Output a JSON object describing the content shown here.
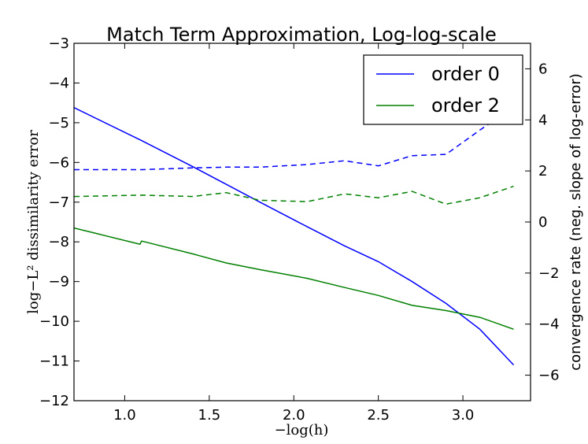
{
  "chart_data": {
    "type": "line",
    "title": "Match Term Approximation, Log-log-scale",
    "xlabel": "−log(h)",
    "ylabel_left": "log−L² dissimilarity error",
    "ylabel_right": "convergence rate (neg. slope of log-error)",
    "xlim": [
      0.7,
      3.4
    ],
    "ylim_left": [
      -12,
      -3
    ],
    "ylim_right": [
      -7,
      7
    ],
    "x_ticks": [
      "1.0",
      "1.5",
      "2.0",
      "2.5",
      "3.0"
    ],
    "x_tick_values": [
      1.0,
      1.5,
      2.0,
      2.5,
      3.0
    ],
    "y_ticks_left": [
      "−12",
      "−11",
      "−10",
      "−9",
      "−8",
      "−7",
      "−6",
      "−5",
      "−4",
      "−3"
    ],
    "y_tick_values_left": [
      -12,
      -11,
      -10,
      -9,
      -8,
      -7,
      -6,
      -5,
      -4,
      -3
    ],
    "y_ticks_right": [
      "−6",
      "−4",
      "−2",
      "0",
      "2",
      "4",
      "6"
    ],
    "y_tick_values_right": [
      -6,
      -4,
      -2,
      0,
      2,
      4,
      6
    ],
    "legend_position": "top-right",
    "series": [
      {
        "name": "order 0",
        "axis": "left",
        "style": "solid",
        "color": "#0000ff",
        "x": [
          0.7,
          1.1,
          1.4,
          1.6,
          1.8,
          2.08,
          2.3,
          2.5,
          2.7,
          2.9,
          3.1,
          3.3
        ],
        "y": [
          -4.62,
          -5.45,
          -6.1,
          -6.55,
          -7.0,
          -7.62,
          -8.1,
          -8.5,
          -9.0,
          -9.55,
          -10.2,
          -11.1
        ]
      },
      {
        "name": "order 2",
        "axis": "left",
        "style": "solid",
        "color": "#008000",
        "x": [
          0.7,
          1.09,
          1.1,
          1.4,
          1.6,
          1.8,
          2.08,
          2.3,
          2.5,
          2.7,
          2.9,
          3.1,
          3.3
        ],
        "y": [
          -7.65,
          -8.06,
          -7.98,
          -8.3,
          -8.53,
          -8.7,
          -8.92,
          -9.15,
          -9.35,
          -9.6,
          -9.73,
          -9.9,
          -10.2
        ]
      },
      {
        "axis": "right",
        "style": "dashed",
        "color": "#0000ff",
        "x": [
          0.7,
          1.1,
          1.4,
          1.6,
          1.8,
          2.08,
          2.3,
          2.5,
          2.7,
          2.9,
          3.1,
          3.3
        ],
        "y": [
          2.05,
          2.05,
          2.12,
          2.15,
          2.15,
          2.25,
          2.4,
          2.2,
          2.6,
          2.65,
          3.6,
          4.5
        ]
      },
      {
        "axis": "right",
        "style": "dashed",
        "color": "#008000",
        "x": [
          0.7,
          1.1,
          1.4,
          1.6,
          1.8,
          2.08,
          2.3,
          2.5,
          2.7,
          2.9,
          3.1,
          3.3
        ],
        "y": [
          1.0,
          1.05,
          1.0,
          1.15,
          0.85,
          0.8,
          1.1,
          0.95,
          1.2,
          0.7,
          0.95,
          1.4
        ]
      }
    ]
  }
}
